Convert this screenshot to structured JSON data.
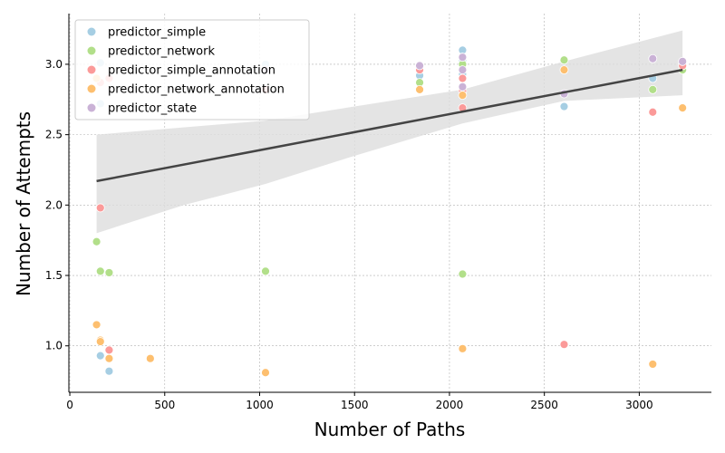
{
  "chart_data": {
    "type": "scatter",
    "xlabel": "Number of Paths",
    "ylabel": "Number of Attempts",
    "xlim": [
      -5,
      3380
    ],
    "ylim": [
      0.67,
      3.36
    ],
    "xticks": [
      0,
      500,
      1000,
      1500,
      2000,
      2500,
      3000
    ],
    "yticks": [
      1.0,
      1.5,
      2.0,
      2.5,
      3.0
    ],
    "xtick_labels": [
      "0",
      "500",
      "1000",
      "1500",
      "2000",
      "2500",
      "3000"
    ],
    "ytick_labels": [
      "1.0",
      "1.5",
      "2.0",
      "2.5",
      "3.0"
    ],
    "grid": true,
    "legend_position": "top-left",
    "series": [
      {
        "name": "predictor_simple",
        "color": "#a6cee3",
        "points": [
          [
            161,
            3.01
          ],
          [
            161,
            2.72
          ],
          [
            161,
            0.93
          ],
          [
            207,
            0.82
          ],
          [
            1031,
            3.0
          ],
          [
            1843,
            2.92
          ],
          [
            2069,
            3.1
          ],
          [
            2069,
            2.93
          ],
          [
            2069,
            3.03
          ],
          [
            2604,
            2.7
          ],
          [
            3071,
            2.9
          ],
          [
            3228,
            3.0
          ]
        ]
      },
      {
        "name": "predictor_network",
        "color": "#b2df8a",
        "points": [
          [
            141,
            1.74
          ],
          [
            161,
            1.53
          ],
          [
            207,
            1.52
          ],
          [
            1031,
            1.53
          ],
          [
            1843,
            2.87
          ],
          [
            2069,
            1.51
          ],
          [
            2069,
            3.0
          ],
          [
            2604,
            3.03
          ],
          [
            3071,
            2.82
          ],
          [
            3228,
            2.96
          ]
        ]
      },
      {
        "name": "predictor_simple_annotation",
        "color": "#fb9a99",
        "points": [
          [
            161,
            1.98
          ],
          [
            161,
            2.87
          ],
          [
            207,
            0.97
          ],
          [
            207,
            2.9
          ],
          [
            1031,
            2.82
          ],
          [
            1843,
            2.96
          ],
          [
            2069,
            2.69
          ],
          [
            2069,
            2.9
          ],
          [
            2069,
            2.81
          ],
          [
            2069,
            3.05
          ],
          [
            2604,
            1.01
          ],
          [
            3071,
            2.66
          ],
          [
            3228,
            2.99
          ]
        ]
      },
      {
        "name": "predictor_network_annotation",
        "color": "#fdbf6f",
        "points": [
          [
            141,
            1.15
          ],
          [
            141,
            2.9
          ],
          [
            161,
            1.04
          ],
          [
            161,
            1.03
          ],
          [
            207,
            0.91
          ],
          [
            424,
            0.91
          ],
          [
            1031,
            0.81
          ],
          [
            1843,
            2.82
          ],
          [
            2069,
            0.98
          ],
          [
            2069,
            2.78
          ],
          [
            2604,
            2.96
          ],
          [
            3071,
            0.87
          ],
          [
            3228,
            2.69
          ]
        ]
      },
      {
        "name": "predictor_state",
        "color": "#cab2d6",
        "points": [
          [
            1031,
            2.96
          ],
          [
            1843,
            2.99
          ],
          [
            2069,
            2.84
          ],
          [
            2069,
            2.96
          ],
          [
            2069,
            3.05
          ],
          [
            2604,
            2.79
          ],
          [
            3071,
            3.04
          ],
          [
            3228,
            3.02
          ]
        ]
      }
    ],
    "regression": {
      "line": [
        [
          141,
          2.17
        ],
        [
          3228,
          2.96
        ]
      ],
      "ci_upper": [
        [
          141,
          2.5
        ],
        [
          1031,
          2.6
        ],
        [
          1500,
          2.7
        ],
        [
          2069,
          2.82
        ],
        [
          2604,
          3.02
        ],
        [
          3228,
          3.24
        ]
      ],
      "ci_lower": [
        [
          141,
          1.8
        ],
        [
          600,
          2.0
        ],
        [
          1031,
          2.15
        ],
        [
          1500,
          2.35
        ],
        [
          2069,
          2.58
        ],
        [
          2604,
          2.74
        ],
        [
          3228,
          2.78
        ]
      ],
      "line_color": "#444444",
      "band_color": "#dddddd"
    }
  }
}
